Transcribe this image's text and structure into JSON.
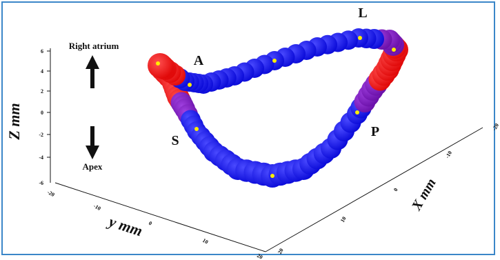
{
  "annotations": {
    "right_atrium": "Right atrium",
    "apex": "Apex"
  },
  "point_labels": {
    "A": "A",
    "L": "L",
    "P": "P",
    "S": "S"
  },
  "axes": {
    "z_label": "Z mm",
    "y_label": "y mm",
    "x_label": "X mm",
    "z_ticks": [
      "6",
      "4",
      "2",
      "0",
      "-2",
      "-4",
      "-6"
    ],
    "y_ticks": [
      "-20",
      "-10",
      "0",
      "10",
      "20"
    ],
    "x_ticks": [
      "20",
      "10",
      "0",
      "-10",
      "-20"
    ]
  },
  "colors": {
    "blue": "#1010e6",
    "red": "#ee1010",
    "purple": "#7a1ab0",
    "marker": "#ffee00",
    "border": "#3a86c8"
  }
}
